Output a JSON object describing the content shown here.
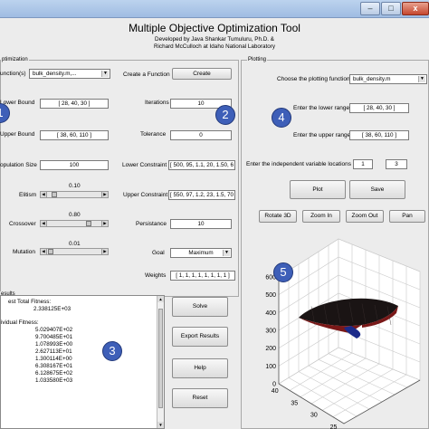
{
  "window": {
    "minimize_glyph": "–",
    "maximize_glyph": "□",
    "close_glyph": "x"
  },
  "header": {
    "title": "Multiple Objective Optimization Tool",
    "author_line": "Developed by Java Shankar Tumuluru, Ph.D. &",
    "affiliation_line": "Richard McCulloch at Idaho National Laboratory"
  },
  "optimization": {
    "section_label": "ptimization",
    "function_label": "unction(s)",
    "function_value": "bulk_density.m,...",
    "create_function_label": "Create a Function",
    "create_button": "Create",
    "lower_bound_label": "Lower Bound",
    "lower_bound_value": "[ 28, 40, 30 ]",
    "upper_bound_label": "Upper Bound",
    "upper_bound_value": "[ 38, 60, 110 ]",
    "population_label": "opulation Size",
    "population_value": "100",
    "iterations_label": "Iterations",
    "iterations_value": "10",
    "tolerance_label": "Tolerance",
    "tolerance_value": "0",
    "lower_constraint_label": "Lower Constraint",
    "lower_constraint_value": "[ 500, 95, 1.1, 20, 1.50, 6",
    "upper_constraint_label": "Upper Constraint",
    "upper_constraint_value": "[ 550, 97, 1.2, 23, 1.5, 70",
    "persistance_label": "Persistance",
    "persistance_value": "10",
    "goal_label": "Goal",
    "goal_value": "Maximum",
    "weights_label": "Weights",
    "weights_value": "[ 1, 1, 1, 1, 1, 1, 1, 1 ]",
    "elitism_label": "Elitism",
    "elitism_value": "0.10",
    "elitism_level": 0.1,
    "crossover_label": "Crossover",
    "crossover_value": "0.80",
    "crossover_level": 0.8,
    "mutation_label": "Mutation",
    "mutation_value": "0.01",
    "mutation_level": 0.01,
    "slider_left_glyph": "◀",
    "slider_right_glyph": "▶",
    "dropdown_glyph": "▼"
  },
  "results": {
    "section_label": "esults",
    "best_label": "est Total Fitness:",
    "best_value": "2.338125E+03",
    "individual_label": "ividual Fitness:",
    "individual_values": [
      "5.029407E+02",
      "9.700485E+01",
      "1.078993E+00",
      "2.627113E+01",
      "1.300114E+00",
      "6.308167E+01",
      "6.128675E+02",
      "1.033580E+03"
    ],
    "scroll_up_glyph": "▲",
    "scroll_down_glyph": "▼"
  },
  "actions": {
    "solve": "Solve",
    "export": "Export Results",
    "help": "Help",
    "reset": "Reset"
  },
  "plotting": {
    "section_label": "Plotting",
    "plot_function_label": "Choose the plotting function",
    "plot_function_value": "bulk_density.m",
    "lower_range_label": "Enter the lower range",
    "lower_range_value": "[ 28, 40, 30 ]",
    "upper_range_label": "Enter the upper range",
    "upper_range_value": "[ 38, 60, 110 ]",
    "independent_label": "Enter the independent variable locations",
    "independent_value_1": "1",
    "independent_value_2": "3",
    "plot_button": "Plot",
    "save_button": "Save",
    "rotate_button": "Rotate 3D",
    "zoom_in_button": "Zoom In",
    "zoom_out_button": "Zoom Out",
    "pan_button": "Pan"
  },
  "badges": [
    "1",
    "2",
    "3",
    "4",
    "5"
  ],
  "colors": {
    "badge_fill": "#3e5fb8",
    "surface_dark": "#1a1414",
    "surface_red": "#7a1818",
    "surface_blue": "#1b2a8a"
  },
  "chart_data": {
    "type": "surface3d",
    "z_axis_ticks": [
      "0",
      "100",
      "200",
      "300",
      "400",
      "500",
      "600"
    ],
    "y_axis_ticks": [
      "25",
      "30",
      "35",
      "40"
    ],
    "x_axis_ticks": [],
    "zlim": [
      0,
      600
    ],
    "ylim": [
      25,
      40
    ],
    "grid": true
  }
}
